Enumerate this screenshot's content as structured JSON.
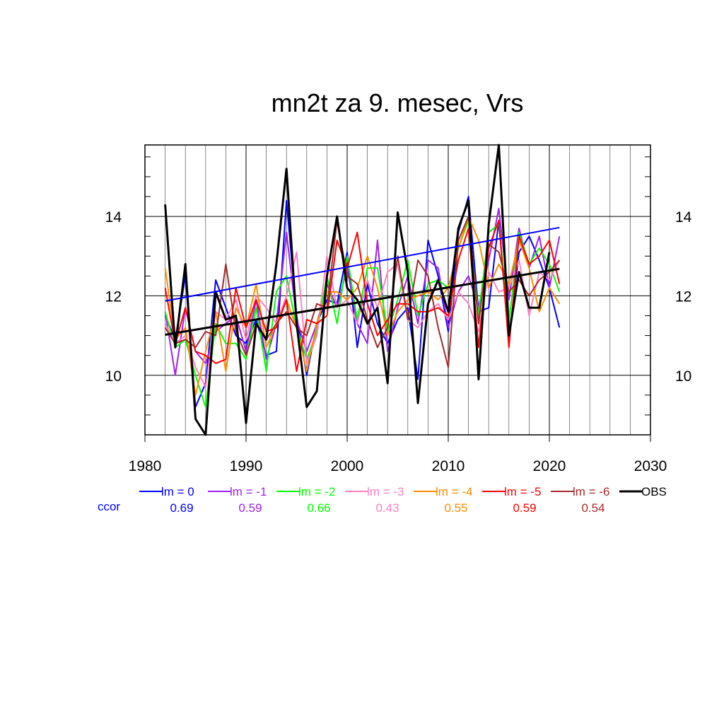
{
  "chart_data": {
    "type": "line",
    "title": "mn2t za 9. mesec, Vrs",
    "xlabel": "",
    "ylabel": "",
    "xlim": [
      1980,
      2030
    ],
    "ylim": [
      8.5,
      15.8
    ],
    "x_ticks": [
      1980,
      1990,
      2000,
      2010,
      2020,
      2030
    ],
    "y_ticks": [
      10,
      12,
      14
    ],
    "grid": true,
    "legend_position": "bottom",
    "ccor_label": "ccor",
    "ccor_color": "#0000ff",
    "series": [
      {
        "name": "lm = 0",
        "color": "#0000ff",
        "ccor": "0.69",
        "width": 2,
        "x": [
          1982,
          1983,
          1984,
          1985,
          1986,
          1987,
          1988,
          1989,
          1990,
          1991,
          1992,
          1993,
          1994,
          1995,
          1996,
          1997,
          1998,
          1999,
          2000,
          2001,
          2002,
          2003,
          2004,
          2005,
          2006,
          2007,
          2008,
          2009,
          2010,
          2011,
          2012,
          2013,
          2014,
          2015,
          2016,
          2017,
          2018,
          2019,
          2020,
          2021
        ],
        "y": [
          11.5,
          10.9,
          12.5,
          9.2,
          9.8,
          12.4,
          11.7,
          11.0,
          10.8,
          11.4,
          10.5,
          10.6,
          14.4,
          11.5,
          10.0,
          11.3,
          11.9,
          11.8,
          13.1,
          10.7,
          12.3,
          11.3,
          10.8,
          11.4,
          11.7,
          9.9,
          13.4,
          12.5,
          11.1,
          13.6,
          14.5,
          11.6,
          11.7,
          13.9,
          10.9,
          13.1,
          13.5,
          12.9,
          12.2,
          11.2
        ],
        "trend": [
          11.87,
          13.72
        ]
      },
      {
        "name": "lm = -1",
        "color": "#a020f0",
        "ccor": "0.59",
        "width": 2,
        "x": [
          1982,
          1983,
          1984,
          1985,
          1986,
          1987,
          1988,
          1989,
          1990,
          1991,
          1992,
          1993,
          1994,
          1995,
          1996,
          1997,
          1998,
          1999,
          2000,
          2001,
          2002,
          2003,
          2004,
          2005,
          2006,
          2007,
          2008,
          2009,
          2010,
          2011,
          2012,
          2013,
          2014,
          2015,
          2016,
          2017,
          2018,
          2019,
          2020,
          2021
        ],
        "y": [
          11.6,
          10.0,
          11.7,
          10.6,
          10.3,
          11.1,
          11.3,
          11.5,
          10.6,
          11.9,
          10.4,
          11.3,
          13.6,
          11.4,
          10.6,
          11.3,
          12.3,
          11.7,
          12.7,
          11.3,
          10.8,
          13.4,
          10.6,
          11.7,
          12.5,
          11.3,
          12.9,
          12.7,
          11.2,
          12.1,
          12.5,
          11.7,
          12.9,
          14.2,
          11.9,
          13.7,
          12.7,
          13.5,
          12.2,
          13.5
        ]
      },
      {
        "name": "lm = -2",
        "color": "#00ff00",
        "ccor": "0.66",
        "width": 2,
        "x": [
          1982,
          1983,
          1984,
          1985,
          1986,
          1987,
          1988,
          1989,
          1990,
          1991,
          1992,
          1993,
          1994,
          1995,
          1996,
          1997,
          1998,
          1999,
          2000,
          2001,
          2002,
          2003,
          2004,
          2005,
          2006,
          2007,
          2008,
          2009,
          2010,
          2011,
          2012,
          2013,
          2014,
          2015,
          2016,
          2017,
          2018,
          2019,
          2020,
          2021
        ],
        "y": [
          11.6,
          10.7,
          10.9,
          10.0,
          9.2,
          11.3,
          10.8,
          10.8,
          10.4,
          11.7,
          10.1,
          12.1,
          12.5,
          11.2,
          10.4,
          11.1,
          12.5,
          11.3,
          13.0,
          11.4,
          12.7,
          12.7,
          11.1,
          11.9,
          12.9,
          11.5,
          12.3,
          12.4,
          12.2,
          13.2,
          13.9,
          11.5,
          13.6,
          13.8,
          11.3,
          13.6,
          12.8,
          13.2,
          12.8,
          12.1
        ]
      },
      {
        "name": "lm = -3",
        "color": "#ff80c0",
        "ccor": "0.43",
        "width": 2,
        "x": [
          1982,
          1983,
          1984,
          1985,
          1986,
          1987,
          1988,
          1989,
          1990,
          1991,
          1992,
          1993,
          1994,
          1995,
          1996,
          1997,
          1998,
          1999,
          2000,
          2001,
          2002,
          2003,
          2004,
          2005,
          2006,
          2007,
          2008,
          2009,
          2010,
          2011,
          2012,
          2013,
          2014,
          2015,
          2016,
          2017,
          2018,
          2019,
          2020,
          2021
        ],
        "y": [
          11.3,
          10.8,
          11.0,
          10.2,
          9.7,
          11.6,
          11.4,
          11.9,
          10.9,
          12.0,
          11.7,
          11.3,
          12.0,
          13.1,
          10.3,
          11.0,
          13.0,
          11.7,
          11.9,
          11.3,
          12.4,
          11.7,
          12.6,
          12.8,
          11.4,
          11.2,
          11.6,
          11.8,
          11.4,
          12.1,
          11.8,
          11.1,
          12.6,
          12.1,
          12.2,
          12.9,
          11.5,
          12.6,
          12.4,
          12.9
        ]
      },
      {
        "name": "lm = -4",
        "color": "#ff8c00",
        "ccor": "0.55",
        "width": 2,
        "x": [
          1982,
          1983,
          1984,
          1985,
          1986,
          1987,
          1988,
          1989,
          1990,
          1991,
          1992,
          1993,
          1994,
          1995,
          1996,
          1997,
          1998,
          1999,
          2000,
          2001,
          2002,
          2003,
          2004,
          2005,
          2006,
          2007,
          2008,
          2009,
          2010,
          2011,
          2012,
          2013,
          2014,
          2015,
          2016,
          2017,
          2018,
          2019,
          2020,
          2021
        ],
        "y": [
          12.7,
          10.9,
          11.2,
          9.5,
          10.6,
          11.6,
          10.1,
          11.7,
          11.2,
          12.3,
          10.7,
          11.3,
          11.9,
          11.2,
          10.1,
          11.3,
          12.1,
          12.1,
          11.9,
          12.2,
          13.0,
          12.2,
          11.0,
          11.6,
          11.9,
          12.0,
          12.1,
          11.9,
          12.2,
          13.2,
          14.0,
          13.4,
          12.2,
          12.8,
          12.3,
          13.4,
          12.7,
          11.6,
          12.2,
          11.8
        ]
      },
      {
        "name": "lm = -5",
        "color": "#ff0000",
        "ccor": "0.59",
        "width": 2,
        "x": [
          1982,
          1983,
          1984,
          1985,
          1986,
          1987,
          1988,
          1989,
          1990,
          1991,
          1992,
          1993,
          1994,
          1995,
          1996,
          1997,
          1998,
          1999,
          2000,
          2001,
          2002,
          2003,
          2004,
          2005,
          2006,
          2007,
          2008,
          2009,
          2010,
          2011,
          2012,
          2013,
          2014,
          2015,
          2016,
          2017,
          2018,
          2019,
          2020,
          2021
        ],
        "y": [
          12.2,
          10.8,
          11.7,
          10.6,
          10.5,
          10.3,
          10.4,
          12.2,
          11.2,
          11.9,
          11.1,
          11.2,
          11.9,
          10.1,
          11.4,
          11.3,
          11.5,
          13.4,
          12.7,
          13.6,
          11.8,
          11.0,
          11.4,
          11.8,
          11.8,
          11.6,
          11.6,
          11.7,
          11.5,
          12.9,
          13.7,
          10.7,
          13.2,
          13.9,
          10.7,
          13.5,
          12.8,
          13.0,
          13.4,
          12.3
        ]
      },
      {
        "name": "lm = -6",
        "color": "#a52a2a",
        "ccor": "0.54",
        "width": 2,
        "x": [
          1982,
          1983,
          1984,
          1985,
          1986,
          1987,
          1988,
          1989,
          1990,
          1991,
          1992,
          1993,
          1994,
          1995,
          1996,
          1997,
          1998,
          1999,
          2000,
          2001,
          2002,
          2003,
          2004,
          2005,
          2006,
          2007,
          2008,
          2009,
          2010,
          2011,
          2012,
          2013,
          2014,
          2015,
          2016,
          2017,
          2018,
          2019,
          2020,
          2021
        ],
        "y": [
          11.2,
          10.8,
          10.9,
          10.7,
          11.1,
          11.0,
          12.8,
          11.1,
          10.5,
          11.3,
          10.9,
          11.3,
          11.6,
          11.2,
          11.0,
          11.8,
          11.7,
          13.9,
          12.5,
          12.3,
          11.4,
          10.7,
          11.2,
          13.0,
          11.4,
          12.9,
          12.5,
          11.2,
          10.2,
          13.4,
          14.0,
          11.3,
          13.3,
          13.1,
          12.1,
          12.4,
          12.0,
          12.4,
          12.6,
          12.9
        ]
      },
      {
        "name": "OBS",
        "color": "#000000",
        "ccor": "",
        "width": 3,
        "x": [
          1982,
          1983,
          1984,
          1985,
          1986,
          1987,
          1988,
          1989,
          1990,
          1991,
          1992,
          1993,
          1994,
          1995,
          1996,
          1997,
          1998,
          1999,
          2000,
          2001,
          2002,
          2003,
          2004,
          2005,
          2006,
          2007,
          2008,
          2009,
          2010,
          2011,
          2012,
          2013,
          2014,
          2015,
          2016,
          2017,
          2018,
          2019,
          2020,
          2021
        ],
        "y": [
          14.3,
          10.7,
          12.8,
          8.9,
          8.5,
          12.1,
          11.4,
          11.5,
          8.8,
          11.3,
          10.9,
          12.8,
          15.2,
          11.3,
          9.2,
          9.6,
          12.5,
          14.0,
          12.2,
          11.9,
          11.3,
          11.7,
          9.8,
          14.1,
          12.6,
          9.3,
          11.8,
          12.4,
          11.6,
          13.7,
          14.4,
          9.9,
          13.8,
          15.8,
          11.0,
          12.6,
          11.7,
          11.7,
          13.1,
          null
        ],
        "trend": [
          11.02,
          12.68
        ]
      }
    ]
  }
}
